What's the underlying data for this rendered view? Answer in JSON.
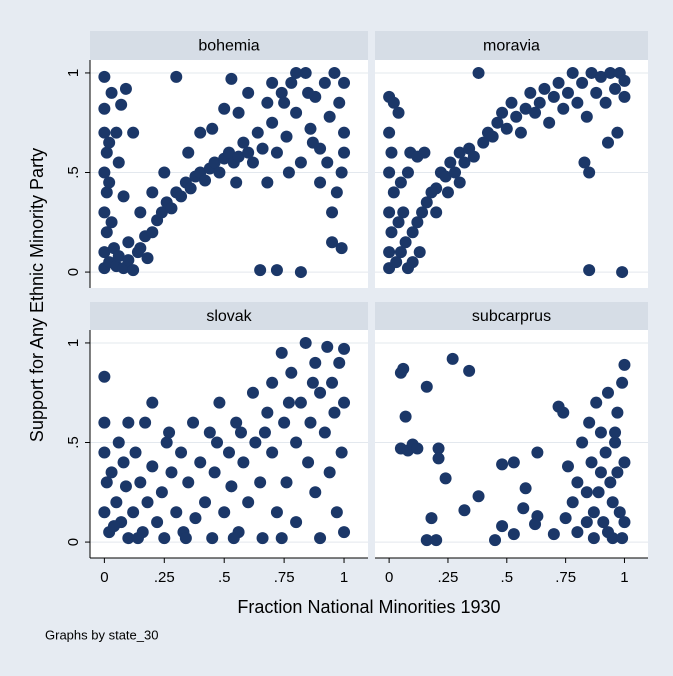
{
  "chart_data": {
    "type": "scatter",
    "y_label": "Support for Any Ethnic Minority Party",
    "x_label": "Fraction National Minorities 1930",
    "note": "Graphs by state_30",
    "color": "#1b3768",
    "grid": true,
    "xlim": [
      -0.06,
      1.1
    ],
    "ylim": [
      -0.08,
      1.065
    ],
    "xticks": [
      0,
      {
        "value": 0.25,
        "label": ".25"
      },
      {
        "value": 0.5,
        "label": ".5"
      },
      {
        "value": 0.75,
        "label": ".75"
      },
      1
    ],
    "yticks": [
      0,
      {
        "value": 0.5,
        "label": ".5"
      },
      1
    ],
    "panels": [
      {
        "title": "bohemia",
        "x": [
          0,
          0,
          0,
          0.01,
          0,
          0.01,
          0,
          0.01,
          0,
          0,
          0.02,
          0.02,
          0.03,
          0.02,
          0.04,
          0.05,
          0.06,
          0.08,
          0.1,
          0.12,
          0.14,
          0.07,
          0.09,
          0.06,
          0.08,
          0.05,
          0.12,
          0.15,
          0.17,
          0.2,
          0.22,
          0.24,
          0.26,
          0.28,
          0.3,
          0.32,
          0.34,
          0.36,
          0.38,
          0.4,
          0.42,
          0.44,
          0.46,
          0.48,
          0.5,
          0.52,
          0.54,
          0.56,
          0.58,
          0.2,
          0.25,
          0.3,
          0.35,
          0.4,
          0.45,
          0.5,
          0.53,
          0.56,
          0.6,
          0.62,
          0.64,
          0.66,
          0.68,
          0.7,
          0.72,
          0.74,
          0.76,
          0.78,
          0.8,
          0.82,
          0.84,
          0.86,
          0.88,
          0.9,
          0.92,
          0.94,
          0.96,
          0.98,
          1,
          1,
          0.99,
          0.97,
          0.95,
          0.9,
          0.85,
          0.8,
          0.75,
          0.7,
          0.65,
          0.72,
          0.82,
          0.95,
          0.99,
          1,
          0.93,
          0.87,
          0.77,
          0.68,
          0.6,
          0.55,
          0.1,
          0.15,
          0.18,
          0.03
        ],
        "y": [
          0.98,
          0.82,
          0.7,
          0.6,
          0.5,
          0.4,
          0.3,
          0.2,
          0.1,
          0.02,
          0.65,
          0.45,
          0.25,
          0.05,
          0.12,
          0.03,
          0.08,
          0.02,
          0.06,
          0.01,
          0.1,
          0.84,
          0.92,
          0.55,
          0.38,
          0.7,
          0.7,
          0.12,
          0.18,
          0.2,
          0.26,
          0.3,
          0.35,
          0.32,
          0.4,
          0.38,
          0.45,
          0.42,
          0.48,
          0.5,
          0.46,
          0.52,
          0.55,
          0.5,
          0.57,
          0.6,
          0.55,
          0.58,
          0.65,
          0.4,
          0.5,
          0.98,
          0.6,
          0.7,
          0.72,
          0.82,
          0.97,
          0.8,
          0.9,
          0.55,
          0.7,
          0.62,
          0.85,
          0.75,
          0.6,
          0.9,
          0.68,
          0.95,
          0.8,
          0.55,
          1,
          0.72,
          0.88,
          0.62,
          0.95,
          0.78,
          1,
          0.85,
          0.7,
          0.95,
          0.5,
          0.4,
          0.3,
          0.45,
          0.9,
          1,
          0.85,
          0.95,
          0.01,
          0.01,
          0,
          0.15,
          0.12,
          0.6,
          0.55,
          0.65,
          0.5,
          0.45,
          0.6,
          0.45,
          0.15,
          0.3,
          0.07,
          0.9
        ]
      },
      {
        "title": "moravia",
        "x": [
          0,
          0.02,
          0.04,
          0,
          0.01,
          0,
          0.02,
          0,
          0.01,
          0,
          0,
          0.03,
          0.05,
          0.07,
          0.06,
          0.08,
          0.09,
          0.1,
          0.12,
          0.14,
          0.16,
          0.18,
          0.2,
          0.22,
          0.24,
          0.26,
          0.28,
          0.3,
          0.32,
          0.34,
          0.36,
          0.38,
          0.4,
          0.42,
          0.44,
          0.46,
          0.48,
          0.5,
          0.52,
          0.54,
          0.56,
          0.58,
          0.6,
          0.62,
          0.64,
          0.66,
          0.68,
          0.7,
          0.72,
          0.74,
          0.76,
          0.78,
          0.8,
          0.82,
          0.84,
          0.86,
          0.88,
          0.9,
          0.92,
          0.94,
          0.96,
          0.98,
          1,
          1,
          0.97,
          0.93,
          0.83,
          0.85,
          0.85,
          0.99,
          0.12,
          0.15,
          0.05,
          0.1,
          0.2,
          0.25,
          0.3,
          0.13,
          0.08,
          0.04
        ],
        "y": [
          0.88,
          0.85,
          0.8,
          0.7,
          0.6,
          0.5,
          0.4,
          0.3,
          0.2,
          0.1,
          0.02,
          0.05,
          0.1,
          0.15,
          0.3,
          0.5,
          0.6,
          0.2,
          0.25,
          0.3,
          0.35,
          0.4,
          0.42,
          0.5,
          0.48,
          0.55,
          0.5,
          0.6,
          0.55,
          0.62,
          0.58,
          1,
          0.65,
          0.7,
          0.68,
          0.75,
          0.8,
          0.72,
          0.85,
          0.78,
          0.7,
          0.82,
          0.9,
          0.8,
          0.85,
          0.92,
          0.75,
          0.88,
          0.95,
          0.82,
          0.9,
          1,
          0.85,
          0.95,
          0.78,
          1,
          0.9,
          0.98,
          0.85,
          1,
          0.92,
          1,
          0.88,
          0.96,
          0.7,
          0.65,
          0.55,
          0.5,
          0.01,
          0,
          0.58,
          0.6,
          0.45,
          0.05,
          0.3,
          0.4,
          0.45,
          0.1,
          0.02,
          0.25
        ]
      },
      {
        "title": "slovak",
        "x": [
          0,
          0,
          0,
          0.01,
          0,
          0.02,
          0.03,
          0.05,
          0.06,
          0.07,
          0.08,
          0.09,
          0.1,
          0.1,
          0.12,
          0.13,
          0.15,
          0.16,
          0.18,
          0.2,
          0.2,
          0.22,
          0.24,
          0.25,
          0.26,
          0.28,
          0.3,
          0.32,
          0.33,
          0.35,
          0.37,
          0.38,
          0.4,
          0.42,
          0.44,
          0.45,
          0.46,
          0.48,
          0.5,
          0.52,
          0.53,
          0.55,
          0.56,
          0.58,
          0.6,
          0.62,
          0.63,
          0.65,
          0.66,
          0.68,
          0.7,
          0.7,
          0.72,
          0.74,
          0.75,
          0.76,
          0.78,
          0.8,
          0.8,
          0.82,
          0.84,
          0.85,
          0.86,
          0.88,
          0.88,
          0.9,
          0.9,
          0.92,
          0.93,
          0.94,
          0.95,
          0.96,
          0.97,
          0.98,
          0.99,
          1,
          1,
          1,
          0.87,
          0.77,
          0.67,
          0.57,
          0.47,
          0.27,
          0.17,
          0.04,
          0.14,
          0.34,
          0.54,
          0.74
        ],
        "y": [
          0.83,
          0.6,
          0.45,
          0.3,
          0.15,
          0.05,
          0.35,
          0.2,
          0.5,
          0.1,
          0.4,
          0.28,
          0.6,
          0.02,
          0.15,
          0.45,
          0.3,
          0.05,
          0.2,
          0.7,
          0.38,
          0.1,
          0.25,
          0.02,
          0.5,
          0.35,
          0.15,
          0.45,
          0.05,
          0.3,
          0.6,
          0.12,
          0.4,
          0.2,
          0.55,
          0.02,
          0.35,
          0.7,
          0.15,
          0.45,
          0.28,
          0.6,
          0.05,
          0.4,
          0.2,
          0.75,
          0.5,
          0.3,
          0.02,
          0.65,
          0.8,
          0.45,
          0.15,
          0.95,
          0.6,
          0.3,
          0.85,
          0.5,
          0.1,
          0.7,
          1,
          0.4,
          0.6,
          0.9,
          0.25,
          0.75,
          0.02,
          0.55,
          0.98,
          0.35,
          0.8,
          0.65,
          0.15,
          0.9,
          0.45,
          0.7,
          0.05,
          0.97,
          0.8,
          0.7,
          0.55,
          0.55,
          0.5,
          0.55,
          0.6,
          0.08,
          0.02,
          0.02,
          0.02,
          0.02
        ]
      },
      {
        "title": "subcarprus",
        "x": [
          0.05,
          0.06,
          0.07,
          0.05,
          0.08,
          0.1,
          0.12,
          0.16,
          0.16,
          0.18,
          0.21,
          0.21,
          0.24,
          0.2,
          0.27,
          0.34,
          0.32,
          0.38,
          0.45,
          0.48,
          0.48,
          0.53,
          0.53,
          0.57,
          0.58,
          0.63,
          0.63,
          0.62,
          0.7,
          0.72,
          0.74,
          0.76,
          0.78,
          0.8,
          0.82,
          0.84,
          0.85,
          0.86,
          0.87,
          0.88,
          0.89,
          0.9,
          0.91,
          0.92,
          0.93,
          0.94,
          0.95,
          0.96,
          0.97,
          0.98,
          0.99,
          1,
          1,
          0.99,
          0.97,
          0.95,
          0.93,
          0.9,
          0.87,
          0.84,
          0.8,
          0.96,
          1,
          0.75
        ],
        "y": [
          0.85,
          0.87,
          0.63,
          0.47,
          0.46,
          0.49,
          0.47,
          0.78,
          0.01,
          0.12,
          0.47,
          0.42,
          0.32,
          0.01,
          0.92,
          0.86,
          0.16,
          0.23,
          0.01,
          0.08,
          0.39,
          0.4,
          0.04,
          0.17,
          0.27,
          0.45,
          0.13,
          0.09,
          0.04,
          0.68,
          0.65,
          0.38,
          0.2,
          0.3,
          0.5,
          0.1,
          0.6,
          0.4,
          0.02,
          0.7,
          0.25,
          0.55,
          0.1,
          0.45,
          0.75,
          0.3,
          0.02,
          0.5,
          0.65,
          0.15,
          0.8,
          0.89,
          0.4,
          0.02,
          0.35,
          0.2,
          0.05,
          0.35,
          0.15,
          0.25,
          0.05,
          0.55,
          0.1,
          0.12
        ]
      }
    ]
  }
}
